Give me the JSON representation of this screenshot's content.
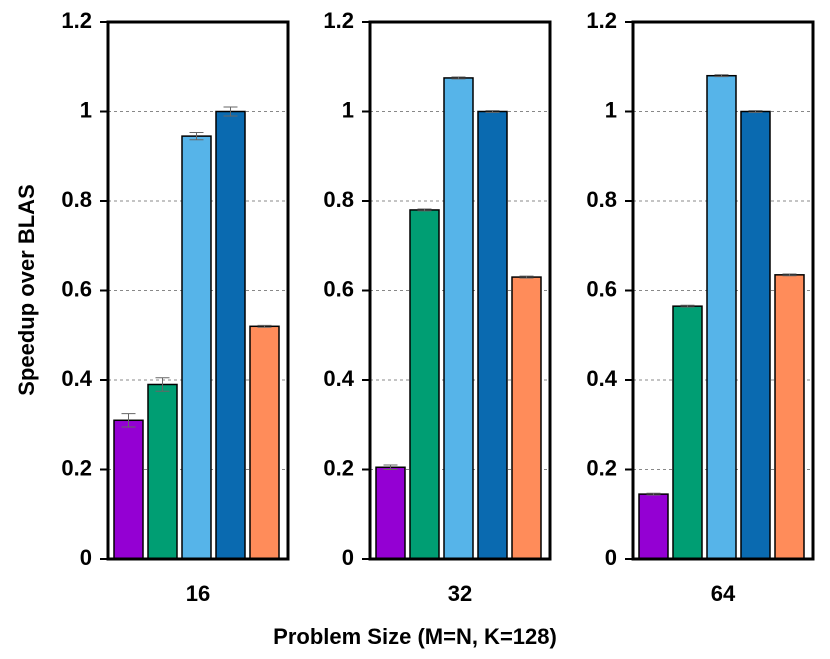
{
  "chart_data": {
    "type": "bar",
    "ylabel": "Speedup over BLAS",
    "xlabel": "Problem Size (M=N, K=128)",
    "categories": [
      "16",
      "32",
      "64"
    ],
    "ylim": [
      0,
      1.2
    ],
    "yticks": [
      0,
      0.2,
      0.4,
      0.6,
      0.8,
      1,
      1.2
    ],
    "grid": true,
    "series": [
      {
        "color": "#9400d3",
        "values": [
          0.31,
          0.205,
          0.145
        ],
        "errors": [
          0.015,
          0.005,
          0.002
        ]
      },
      {
        "color": "#009e73",
        "values": [
          0.39,
          0.78,
          0.565
        ],
        "errors": [
          0.015,
          0.002,
          0.002
        ]
      },
      {
        "color": "#56b4e9",
        "values": [
          0.945,
          1.075,
          1.08
        ],
        "errors": [
          0.008,
          0.002,
          0.002
        ]
      },
      {
        "color": "#0a6ab0",
        "values": [
          1.0,
          1.0,
          1.0
        ],
        "errors": [
          0.01,
          0.002,
          0.002
        ]
      },
      {
        "color": "#ff8c5a",
        "values": [
          0.52,
          0.63,
          0.635
        ],
        "errors": [
          0.002,
          0.002,
          0.002
        ]
      }
    ]
  }
}
